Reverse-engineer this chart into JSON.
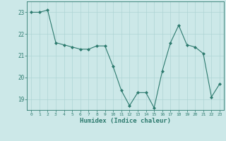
{
  "x": [
    0,
    1,
    2,
    3,
    4,
    5,
    6,
    7,
    8,
    9,
    10,
    11,
    12,
    13,
    14,
    15,
    16,
    17,
    18,
    19,
    20,
    21,
    22,
    23
  ],
  "y": [
    23.0,
    23.0,
    23.1,
    21.6,
    21.5,
    21.4,
    21.3,
    21.3,
    21.45,
    21.45,
    20.5,
    19.4,
    18.7,
    19.3,
    19.3,
    18.6,
    20.3,
    21.6,
    22.4,
    21.5,
    21.4,
    21.1,
    19.1,
    19.7
  ],
  "xlabel": "Humidex (Indice chaleur)",
  "ylim": [
    18.5,
    23.5
  ],
  "xlim": [
    -0.5,
    23.5
  ],
  "yticks": [
    19,
    20,
    21,
    22,
    23
  ],
  "xticks": [
    0,
    1,
    2,
    3,
    4,
    5,
    6,
    7,
    8,
    9,
    10,
    11,
    12,
    13,
    14,
    15,
    16,
    17,
    18,
    19,
    20,
    21,
    22,
    23
  ],
  "line_color": "#2d7a6e",
  "marker_color": "#2d7a6e",
  "bg_color": "#cce8e8",
  "grid_color": "#aed4d4",
  "axis_color": "#2d7a6e",
  "tick_color": "#2d7a6e",
  "label_color": "#2d7a6e"
}
